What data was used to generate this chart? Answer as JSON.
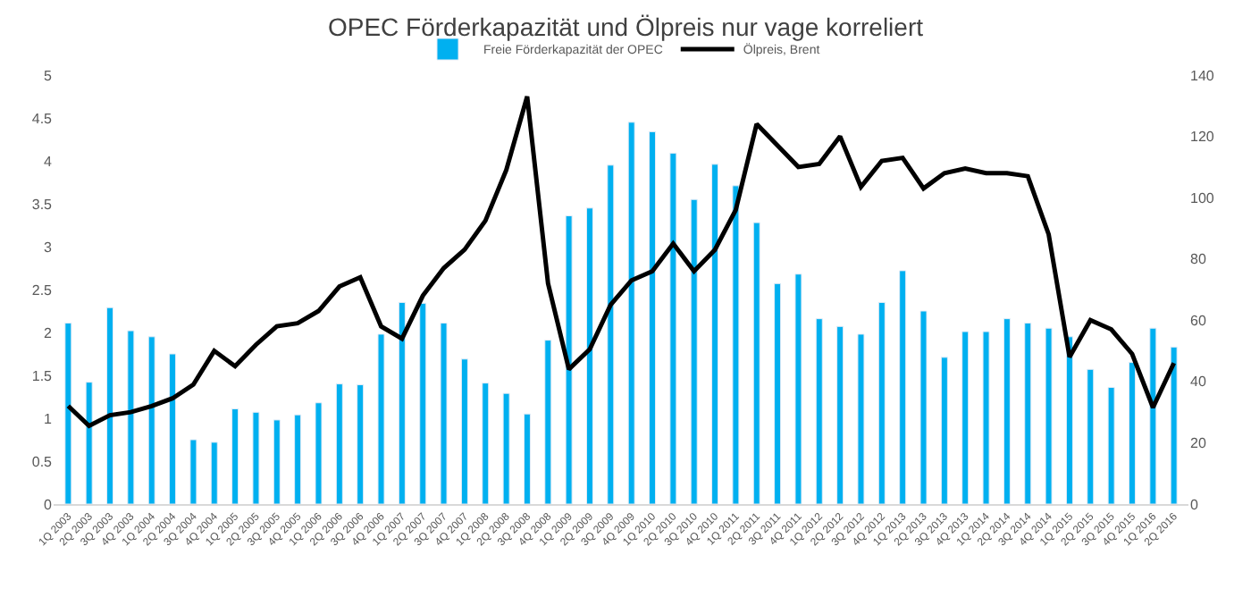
{
  "chart_data": {
    "type": "bar",
    "title": "OPEC Förderkapazität und Ölpreis nur vage korreliert",
    "categories": [
      "1Q 2003",
      "2Q 2003",
      "3Q 2003",
      "4Q 2003",
      "1Q 2004",
      "2Q 2004",
      "3Q 2004",
      "4Q 2004",
      "1Q 2005",
      "2Q 2005",
      "3Q 2005",
      "4Q 2005",
      "1Q 2006",
      "2Q 2006",
      "3Q 2006",
      "4Q 2006",
      "1Q 2007",
      "2Q 2007",
      "3Q 2007",
      "4Q 2007",
      "1Q 2008",
      "2Q 2008",
      "3Q 2008",
      "4Q 2008",
      "1Q 2009",
      "2Q 2009",
      "3Q 2009",
      "4Q 2009",
      "1Q 2010",
      "2Q 2010",
      "3Q 2010",
      "4Q 2010",
      "1Q 2011",
      "2Q 2011",
      "3Q 2011",
      "4Q 2011",
      "1Q 2012",
      "2Q 2012",
      "3Q 2012",
      "4Q 2012",
      "1Q 2013",
      "2Q 2013",
      "3Q 2013",
      "4Q 2013",
      "1Q 2014",
      "2Q 2014",
      "3Q 2014",
      "4Q 2014",
      "1Q 2015",
      "2Q 2015",
      "3Q 2015",
      "4Q 2015",
      "1Q 2016",
      "2Q 2016"
    ],
    "series": [
      {
        "name": "Freie Förderkapazität der OPEC",
        "color": "#00b0f0",
        "values": [
          2.11,
          1.42,
          2.29,
          2.02,
          1.95,
          1.75,
          0.75,
          0.72,
          1.11,
          1.07,
          0.98,
          1.04,
          1.18,
          1.4,
          1.39,
          1.98,
          2.35,
          2.34,
          2.11,
          1.69,
          1.41,
          1.29,
          1.05,
          1.91,
          3.36,
          3.45,
          3.95,
          4.45,
          4.34,
          4.09,
          3.55,
          3.96,
          3.71,
          3.28,
          2.57,
          2.68,
          2.16,
          2.07,
          1.98,
          2.35,
          2.72,
          2.25,
          1.71,
          2.01,
          2.01,
          2.16,
          2.11,
          2.05,
          1.95,
          1.57,
          1.36,
          1.65,
          2.05,
          1.83
        ]
      },
      {
        "name": "Ölpreis, Brent",
        "type": "line",
        "axis": "y2",
        "color": "#000000",
        "values": [
          32,
          25.5,
          29,
          30,
          32,
          34.5,
          39,
          50,
          45,
          52,
          58,
          59,
          63,
          71,
          74,
          58,
          54,
          68,
          77,
          83,
          92.5,
          109,
          133,
          72,
          44,
          50.5,
          65,
          73,
          76,
          85,
          76,
          83,
          96,
          124,
          117,
          110,
          111,
          120,
          103.5,
          112,
          113,
          103,
          108,
          109.5,
          108,
          108,
          107,
          88,
          48,
          60,
          57,
          49,
          31.5,
          46
        ]
      }
    ],
    "ylim": [
      0,
      5
    ],
    "yticks": [
      0,
      0.5,
      1,
      1.5,
      2,
      2.5,
      3,
      3.5,
      4,
      4.5,
      5
    ],
    "y2lim": [
      0,
      140
    ],
    "y2ticks": [
      0,
      20,
      40,
      60,
      80,
      100,
      120,
      140
    ],
    "legend": "top",
    "marker": "none",
    "line_style": "solid"
  }
}
